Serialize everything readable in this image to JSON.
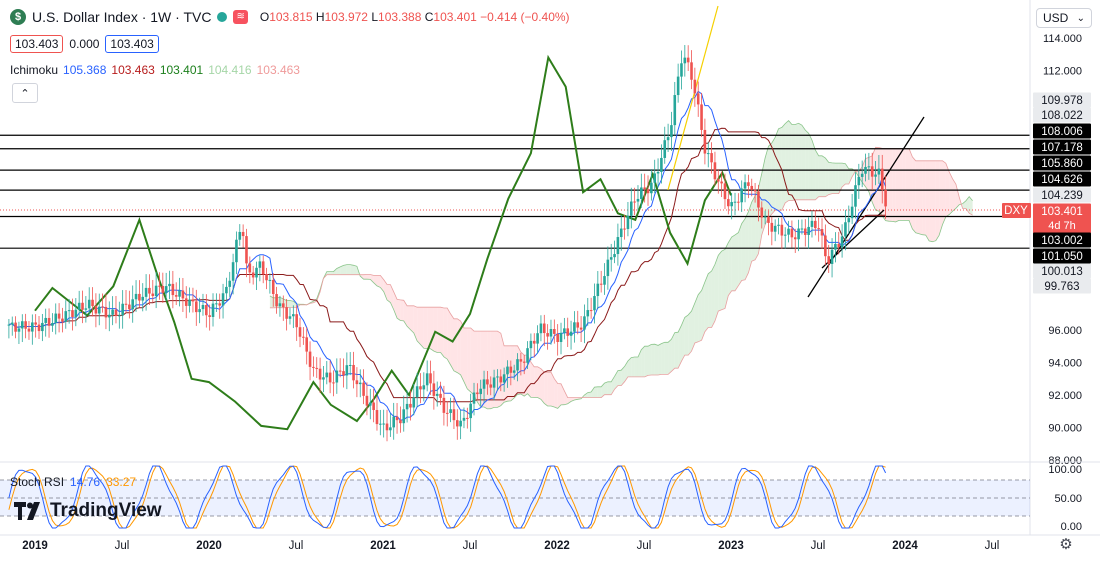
{
  "header": {
    "title": "U.S. Dollar Index · 1W · TVC",
    "logo_letter": "$",
    "wave_glyph": "≋",
    "ohlc": {
      "o_label": "O",
      "o": "103.815",
      "h_label": "H",
      "h": "103.972",
      "l_label": "L",
      "l": "103.388",
      "c_label": "C",
      "c": "103.401",
      "change": "−0.414 (−0.40%)"
    },
    "bid": "103.403",
    "spread": "0.000",
    "ask": "103.403"
  },
  "ichimoku_legend": {
    "label": "Ichimoku",
    "values": [
      "105.368",
      "103.463",
      "103.401",
      "104.416",
      "103.463"
    ],
    "colors": [
      "#2962ff",
      "#b71c1c",
      "#1b7f1b",
      "#a5d6a7",
      "#ef9a9a"
    ]
  },
  "currency": "USD",
  "colors": {
    "up": "#26a69a",
    "down": "#ef5350",
    "tenkan": "#2962ff",
    "kijun": "#8b1a1a",
    "chikou": "#2e7d1a",
    "cloud_green": "#c8e6c9",
    "cloud_red": "#ffcdd2",
    "lagging_yellow": "#f5d000"
  },
  "stoch_rsi": {
    "label": "Stoch RSI",
    "k": "14.76",
    "d": "33.27",
    "k_color": "#2962ff",
    "d_color": "#ff9800",
    "ticks": [
      "100.00",
      "50.00",
      "0.00"
    ]
  },
  "branding": "TradingView",
  "chart_data": {
    "type": "candlestick",
    "title": "U.S. Dollar Index · 1W · TVC",
    "xlabel": "",
    "ylabel": "",
    "ylim": [
      88,
      115
    ],
    "x_ticks": [
      "2019",
      "Jul",
      "2020",
      "Jul",
      "2021",
      "Jul",
      "2022",
      "Jul",
      "2023",
      "Jul",
      "2024",
      "Jul"
    ],
    "y_ticks": [
      "114.000",
      "112.000",
      "96.000",
      "94.000",
      "92.000",
      "90.000",
      "88.000"
    ],
    "price_labels": [
      {
        "value": "109.978",
        "style": "gray"
      },
      {
        "value": "108.022",
        "style": "gray"
      },
      {
        "value": "108.006",
        "style": "dark"
      },
      {
        "value": "107.178",
        "style": "dark"
      },
      {
        "value": "105.860",
        "style": "dark"
      },
      {
        "value": "104.626",
        "style": "dark"
      },
      {
        "value": "104.239",
        "style": "gray"
      },
      {
        "value": "103.401",
        "style": "red",
        "sub": "4d 7h"
      },
      {
        "value": "103.002",
        "style": "dark"
      },
      {
        "value": "101.050",
        "style": "dark"
      },
      {
        "value": "100.013",
        "style": "gray"
      },
      {
        "value": "99.763",
        "style": "gray"
      }
    ],
    "symbol_tag": "DXY",
    "horizontal_levels": [
      108.006,
      107.178,
      105.86,
      104.626,
      103.002,
      101.05
    ],
    "last_price": 103.401,
    "close_path": [
      [
        2019.0,
        96.2
      ],
      [
        2019.15,
        96.8
      ],
      [
        2019.3,
        97.6
      ],
      [
        2019.45,
        96.9
      ],
      [
        2019.6,
        98.1
      ],
      [
        2019.75,
        98.7
      ],
      [
        2019.9,
        97.6
      ],
      [
        2020.0,
        97.0
      ],
      [
        2020.1,
        98.4
      ],
      [
        2020.19,
        102.8
      ],
      [
        2020.22,
        99.3
      ],
      [
        2020.3,
        100.0
      ],
      [
        2020.4,
        97.5
      ],
      [
        2020.5,
        96.5
      ],
      [
        2020.6,
        93.5
      ],
      [
        2020.7,
        92.9
      ],
      [
        2020.8,
        93.8
      ],
      [
        2020.9,
        91.8
      ],
      [
        2021.0,
        89.9
      ],
      [
        2021.1,
        90.6
      ],
      [
        2021.25,
        93.1
      ],
      [
        2021.35,
        91.2
      ],
      [
        2021.45,
        90.1
      ],
      [
        2021.55,
        92.5
      ],
      [
        2021.65,
        92.9
      ],
      [
        2021.8,
        94.1
      ],
      [
        2021.9,
        96.1
      ],
      [
        2022.0,
        95.6
      ],
      [
        2022.15,
        96.4
      ],
      [
        2022.3,
        100.2
      ],
      [
        2022.45,
        104.2
      ],
      [
        2022.55,
        105.0
      ],
      [
        2022.65,
        108.4
      ],
      [
        2022.72,
        113.1
      ],
      [
        2022.78,
        111.5
      ],
      [
        2022.85,
        107.2
      ],
      [
        2022.92,
        105.3
      ],
      [
        2023.0,
        103.5
      ],
      [
        2023.1,
        105.2
      ],
      [
        2023.2,
        102.6
      ],
      [
        2023.35,
        101.8
      ],
      [
        2023.5,
        102.6
      ],
      [
        2023.55,
        100.2
      ],
      [
        2023.65,
        102.0
      ],
      [
        2023.75,
        106.0
      ],
      [
        2023.85,
        105.6
      ],
      [
        2023.9,
        103.4
      ]
    ],
    "chikou_path": [
      [
        2019.0,
        97.2
      ],
      [
        2019.1,
        98.6
      ],
      [
        2019.3,
        96.9
      ],
      [
        2019.45,
        98.7
      ],
      [
        2019.6,
        102.8
      ],
      [
        2019.7,
        99.5
      ],
      [
        2019.8,
        96.5
      ],
      [
        2019.9,
        93.0
      ],
      [
        2020.0,
        92.8
      ],
      [
        2020.15,
        91.6
      ],
      [
        2020.3,
        90.1
      ],
      [
        2020.45,
        89.9
      ],
      [
        2020.6,
        92.8
      ],
      [
        2020.7,
        91.4
      ],
      [
        2020.85,
        90.4
      ],
      [
        2020.95,
        91.8
      ],
      [
        2021.05,
        93.5
      ],
      [
        2021.15,
        92.0
      ],
      [
        2021.3,
        95.9
      ],
      [
        2021.4,
        95.3
      ],
      [
        2021.5,
        97.0
      ],
      [
        2021.6,
        100.4
      ],
      [
        2021.72,
        104.1
      ],
      [
        2021.85,
        106.9
      ],
      [
        2021.95,
        112.8
      ],
      [
        2022.05,
        111.0
      ],
      [
        2022.15,
        104.5
      ],
      [
        2022.25,
        105.3
      ],
      [
        2022.35,
        103.2
      ],
      [
        2022.45,
        102.8
      ],
      [
        2022.55,
        105.6
      ],
      [
        2022.65,
        102.0
      ],
      [
        2022.75,
        100.1
      ],
      [
        2022.85,
        104.0
      ],
      [
        2022.95,
        105.7
      ],
      [
        2023.0,
        104.3
      ]
    ],
    "stoch_rsi_note": "oscillating K and D between 0 and 100"
  }
}
